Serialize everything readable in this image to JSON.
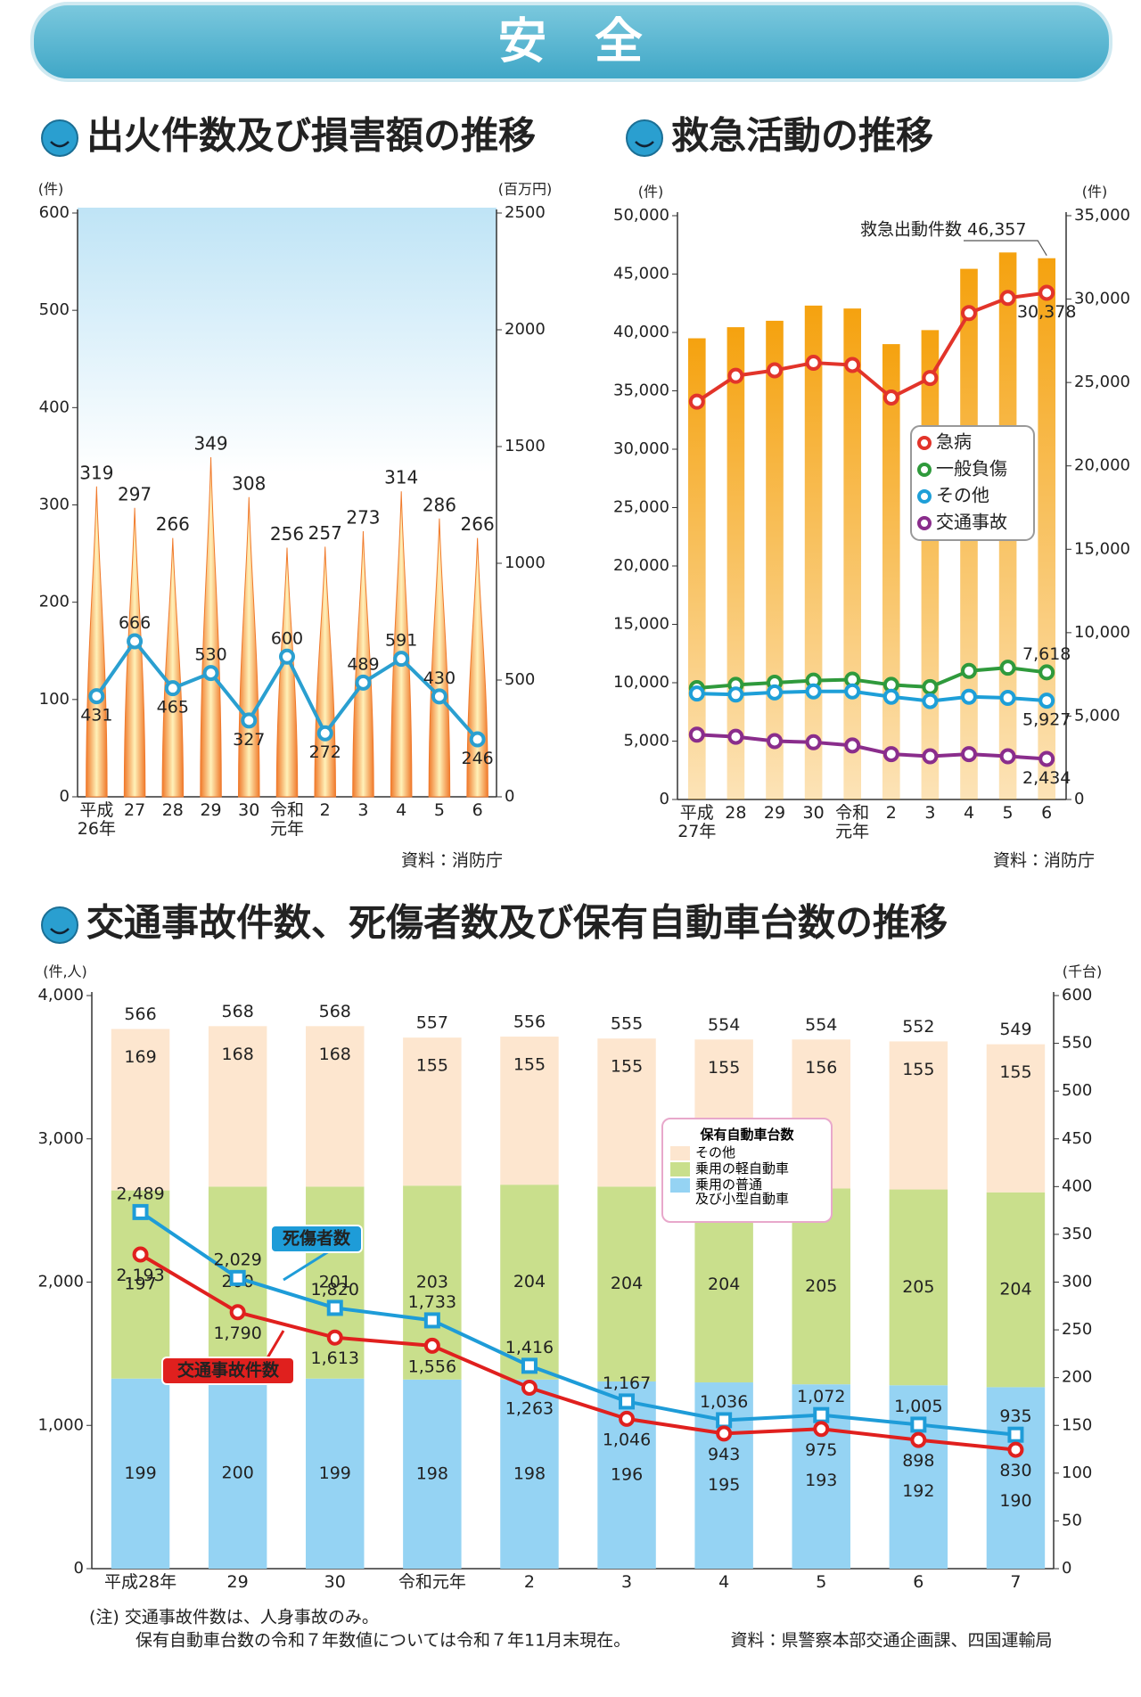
{
  "header": {
    "title": "安　全"
  },
  "chart_data": [
    {
      "type": "bar",
      "title": "出火件数及び損害額の推移",
      "y_label": "(件)",
      "y2_label": "(百万円)",
      "source": "資料：消防庁",
      "categories": [
        "平成\n26年",
        "27",
        "28",
        "29",
        "30",
        "令和\n元年",
        "2",
        "3",
        "4",
        "5",
        "6"
      ],
      "ylim": [
        0,
        600
      ],
      "yticks": [
        0,
        100,
        200,
        300,
        400,
        500,
        600
      ],
      "y2lim": [
        0,
        2500
      ],
      "y2ticks": [
        0,
        500,
        1000,
        1500,
        2000,
        2500
      ],
      "series": [
        {
          "type": "bar",
          "color": "#f07a2c",
          "values": [
            319,
            297,
            266,
            349,
            308,
            256,
            257,
            273,
            314,
            286,
            266
          ]
        },
        {
          "type": "line",
          "axis": "y2",
          "color": "#2a9fd0",
          "marker": "circle",
          "values": [
            431,
            666,
            465,
            530,
            327,
            600,
            272,
            489,
            591,
            430,
            246
          ]
        }
      ]
    },
    {
      "type": "bar",
      "title": "救急活動の推移",
      "y_label": "(件)",
      "y2_label": "(件)",
      "source": "資料：消防庁",
      "categories": [
        "平成\n27年",
        "28",
        "29",
        "30",
        "令和\n元年",
        "2",
        "3",
        "4",
        "5",
        "6"
      ],
      "ylim": [
        0,
        50000
      ],
      "yticks": [
        0,
        {
          "value": 5000,
          "label": "5,000"
        },
        {
          "value": 10000,
          "label": "10,000"
        },
        {
          "value": 15000,
          "label": "15,000"
        },
        {
          "value": 20000,
          "label": "20,000"
        },
        {
          "value": 25000,
          "label": "25,000"
        },
        {
          "value": 30000,
          "label": "30,000"
        },
        {
          "value": 35000,
          "label": "35,000"
        },
        {
          "value": 40000,
          "label": "40,000"
        },
        {
          "value": 45000,
          "label": "45,000"
        },
        {
          "value": 50000,
          "label": "50,000"
        }
      ],
      "y2lim": [
        0,
        35000
      ],
      "y2ticks": [
        0,
        {
          "value": 5000,
          "label": "5,000"
        },
        {
          "value": 10000,
          "label": "10,000"
        },
        {
          "value": 15000,
          "label": "15,000"
        },
        {
          "value": 20000,
          "label": "20,000"
        },
        {
          "value": 25000,
          "label": "25,000"
        },
        {
          "value": 30000,
          "label": "30,000"
        },
        {
          "value": 35000,
          "label": "35,000"
        }
      ],
      "series": [
        {
          "name": "救急出動件数",
          "type": "bar",
          "color": "#f5a20f",
          "values": [
            39500,
            40450,
            41000,
            42300,
            42050,
            39000,
            40200,
            45450,
            46850,
            46357
          ],
          "value_labels": [
            null,
            null,
            null,
            null,
            null,
            null,
            null,
            null,
            null,
            "46,357"
          ]
        },
        {
          "name": "急病",
          "type": "line",
          "axis": "y2",
          "color": "#e2342a",
          "marker": "circle",
          "values": [
            23850,
            25400,
            25730,
            26180,
            26050,
            24100,
            25270,
            29160,
            30070,
            30378
          ],
          "value_labels": [
            null,
            null,
            null,
            null,
            null,
            null,
            null,
            null,
            null,
            "30,378"
          ]
        },
        {
          "name": "一般負傷",
          "type": "line",
          "axis": "y2",
          "color": "#2f9a3c",
          "marker": "circle",
          "values": [
            6680,
            6870,
            7000,
            7130,
            7190,
            6870,
            6740,
            7710,
            7900,
            7618
          ],
          "value_labels": [
            null,
            null,
            null,
            null,
            null,
            null,
            null,
            null,
            null,
            "7,618"
          ]
        },
        {
          "name": "その他",
          "type": "line",
          "axis": "y2",
          "color": "#1e9fd8",
          "marker": "circle",
          "values": [
            6350,
            6290,
            6420,
            6480,
            6480,
            6160,
            5900,
            6160,
            6090,
            5927
          ],
          "value_labels": [
            null,
            null,
            null,
            null,
            null,
            null,
            null,
            null,
            null,
            "5,927"
          ]
        },
        {
          "name": "交通事故",
          "type": "line",
          "axis": "y2",
          "color": "#8a2d8c",
          "marker": "circle",
          "values": [
            3890,
            3760,
            3500,
            3430,
            3240,
            2720,
            2590,
            2720,
            2590,
            2434
          ],
          "value_labels": [
            null,
            null,
            null,
            null,
            null,
            null,
            null,
            null,
            null,
            "2,434"
          ]
        }
      ]
    },
    {
      "type": "stacked_bar",
      "title": "交通事故件数、死傷者数及び保有自動車台数の推移",
      "y_label": "(件,人)",
      "y2_label": "(千台)",
      "legend_title": "保有自動車台数",
      "notes": [
        "(注) 交通事故件数は、人身事故のみ。",
        "保有自動車台数の令和７年数値については令和７年11月末現在。"
      ],
      "source": "資料：県警察本部交通企画課、四国運輸局",
      "categories": [
        "平成28年",
        "29",
        "30",
        "令和元年",
        "2",
        "3",
        "4",
        "5",
        "6",
        "7"
      ],
      "ylim": [
        0,
        4000
      ],
      "yticks": [
        0,
        {
          "value": 1000,
          "label": "1,000"
        },
        {
          "value": 2000,
          "label": "2,000"
        },
        {
          "value": 3000,
          "label": "3,000"
        },
        {
          "value": 4000,
          "label": "4,000"
        }
      ],
      "y2lim": [
        0,
        600
      ],
      "y2ticks": [
        0,
        50,
        100,
        150,
        200,
        250,
        300,
        350,
        400,
        450,
        500,
        550,
        600
      ],
      "totals": [
        566,
        568,
        568,
        557,
        556,
        555,
        554,
        554,
        552,
        549
      ],
      "series": [
        {
          "name": "乗用の普通\n及び小型自動車",
          "type": "bar",
          "axis": "y2",
          "color": "#95d3f3",
          "values": [
            199,
            200,
            199,
            198,
            198,
            196,
            195,
            193,
            192,
            190
          ]
        },
        {
          "name": "乗用の軽自動車",
          "type": "bar",
          "axis": "y2",
          "color": "#c9df8c",
          "values": [
            197,
            200,
            201,
            203,
            204,
            204,
            204,
            205,
            205,
            204
          ]
        },
        {
          "name": "その他",
          "type": "bar",
          "axis": "y2",
          "color": "#fde6cf",
          "values": [
            169,
            168,
            168,
            155,
            155,
            155,
            155,
            156,
            155,
            155
          ]
        },
        {
          "name": "死傷者数",
          "type": "line",
          "color": "#1e9cd8",
          "marker": "square",
          "values": [
            2489,
            2029,
            1820,
            1733,
            1416,
            1167,
            1036,
            1072,
            1005,
            935
          ],
          "value_labels": [
            "2,489",
            "2,029",
            "1,820",
            "1,733",
            "1,416",
            "1,167",
            "1,036",
            "1,072",
            "1,005",
            "935"
          ]
        },
        {
          "name": "交通事故件数",
          "type": "line",
          "color": "#e0201e",
          "marker": "circle",
          "values": [
            2193,
            1790,
            1613,
            1556,
            1263,
            1046,
            943,
            975,
            898,
            830
          ],
          "value_labels": [
            "2,193",
            "1,790",
            "1,613",
            "1,556",
            "1,263",
            "1,046",
            "943",
            "975",
            "898",
            "830"
          ]
        }
      ]
    }
  ]
}
